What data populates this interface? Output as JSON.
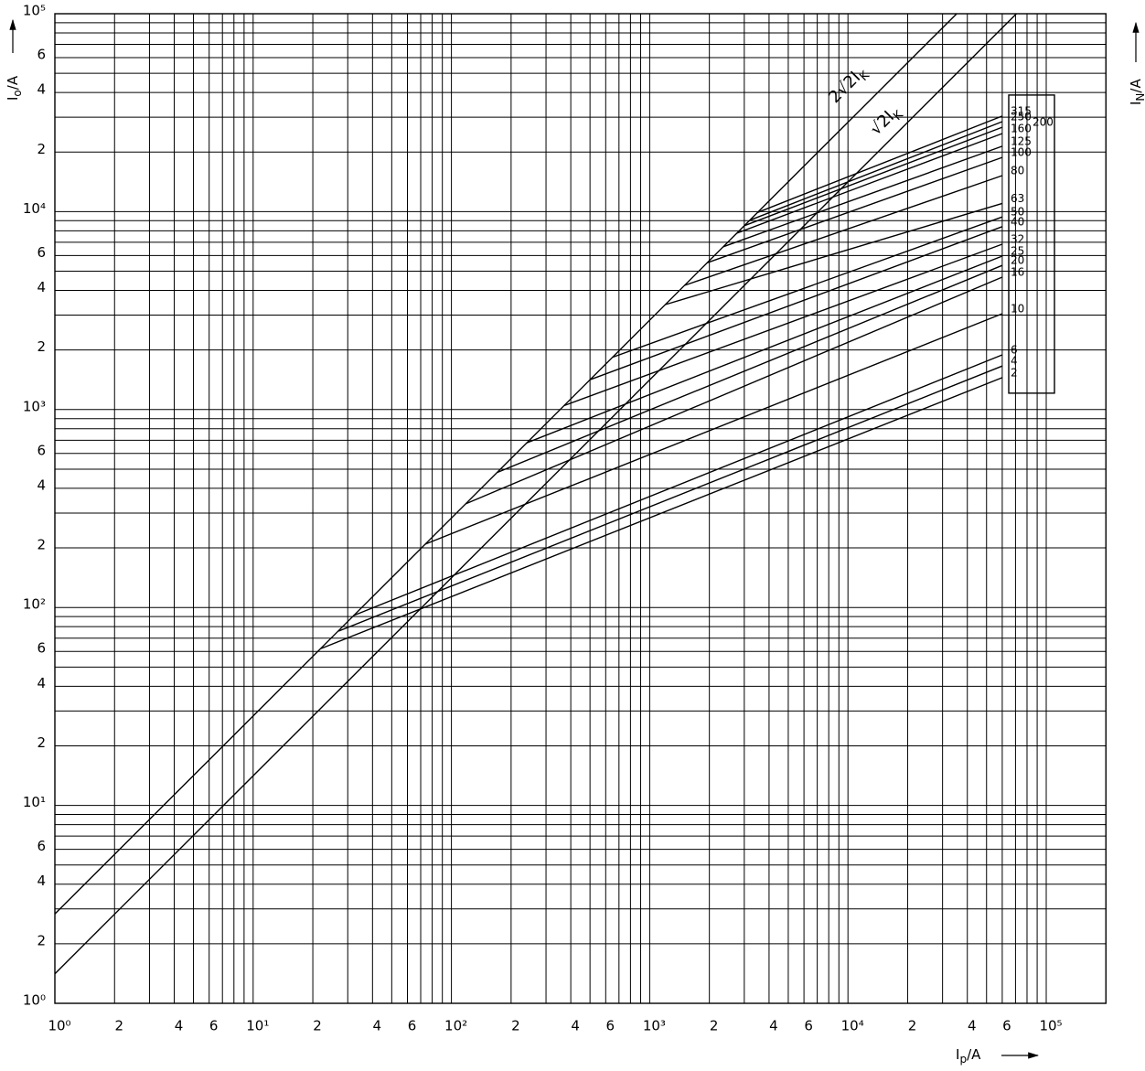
{
  "chart_data": {
    "type": "line",
    "log_x": true,
    "log_y": true,
    "grid": true,
    "color": "#000000",
    "xlim": [
      1,
      200000
    ],
    "ylim": [
      1,
      100000
    ],
    "xticks": [
      {
        "value": 1,
        "label": "10⁰"
      },
      2,
      4,
      6,
      {
        "value": 10,
        "label": "10¹"
      },
      {
        "value": 20,
        "label": "2"
      },
      {
        "value": 40,
        "label": "4"
      },
      {
        "value": 60,
        "label": "6"
      },
      {
        "value": 100,
        "label": "10²"
      },
      {
        "value": 200,
        "label": "2"
      },
      {
        "value": 400,
        "label": "4"
      },
      {
        "value": 600,
        "label": "6"
      },
      {
        "value": 1000,
        "label": "10³"
      },
      {
        "value": 2000,
        "label": "2"
      },
      {
        "value": 4000,
        "label": "4"
      },
      {
        "value": 6000,
        "label": "6"
      },
      {
        "value": 10000,
        "label": "10⁴"
      },
      {
        "value": 20000,
        "label": "2"
      },
      {
        "value": 40000,
        "label": "4"
      },
      {
        "value": 60000,
        "label": "6"
      },
      {
        "value": 100000,
        "label": "10⁵"
      }
    ],
    "yticks": [
      {
        "value": 1,
        "label": "10⁰"
      },
      2,
      4,
      6,
      {
        "value": 10,
        "label": "10¹"
      },
      {
        "value": 20,
        "label": "2"
      },
      {
        "value": 40,
        "label": "4"
      },
      {
        "value": 60,
        "label": "6"
      },
      {
        "value": 100,
        "label": "10²"
      },
      {
        "value": 200,
        "label": "2"
      },
      {
        "value": 400,
        "label": "4"
      },
      {
        "value": 600,
        "label": "6"
      },
      {
        "value": 1000,
        "label": "10³"
      },
      {
        "value": 2000,
        "label": "2"
      },
      {
        "value": 4000,
        "label": "4"
      },
      {
        "value": 6000,
        "label": "6"
      },
      {
        "value": 10000,
        "label": "10⁴"
      },
      {
        "value": 20000,
        "label": "2"
      },
      {
        "value": 40000,
        "label": "4"
      },
      {
        "value": 60000,
        "label": "6"
      },
      {
        "value": 100000,
        "label": "10⁵"
      }
    ],
    "xminor": [
      3,
      5,
      7,
      8,
      9,
      30,
      50,
      70,
      80,
      90,
      300,
      500,
      700,
      800,
      900,
      3000,
      5000,
      7000,
      8000,
      9000,
      30000,
      50000,
      70000,
      80000,
      90000
    ],
    "yminor": [
      3,
      5,
      7,
      8,
      9,
      30,
      50,
      70,
      80,
      90,
      300,
      500,
      700,
      800,
      900,
      3000,
      5000,
      7000,
      8000,
      9000,
      30000,
      50000,
      70000,
      80000,
      90000
    ],
    "x_label": {
      "main": "I",
      "sub": "p",
      "unit": "/A"
    },
    "y_label": {
      "main": "I",
      "sub": "o",
      "unit": "/A"
    },
    "y2_label": {
      "main": "I",
      "sub": "N",
      "unit": "/A"
    },
    "reference_lines": [
      {
        "name": "2√2I",
        "name_sub": "K",
        "x": [
          1,
          35355
        ],
        "values": [
          2.83,
          100000
        ]
      },
      {
        "name": "√2I",
        "name_sub": "K",
        "x": [
          1,
          70711
        ],
        "values": [
          1.41,
          100000
        ]
      }
    ],
    "series": [
      {
        "name": "315",
        "x": [
          3500,
          60000
        ],
        "values": [
          9900,
          30400
        ]
      },
      {
        "name": "250",
        "x": [
          3200,
          60000
        ],
        "values": [
          9050,
          28500
        ]
      },
      {
        "name": "200",
        "x": [
          3000,
          60000
        ],
        "values": [
          8485,
          26700
        ]
      },
      {
        "name": "160",
        "x": [
          2750,
          60000
        ],
        "values": [
          7778,
          24800
        ]
      },
      {
        "name": "125",
        "x": [
          2350,
          60000
        ],
        "values": [
          6646,
          21400
        ]
      },
      {
        "name": "100",
        "x": [
          1950,
          60000
        ],
        "values": [
          5515,
          18800
        ]
      },
      {
        "name": "80",
        "x": [
          1500,
          60000
        ],
        "values": [
          4243,
          15200
        ]
      },
      {
        "name": "63",
        "x": [
          1200,
          60000
        ],
        "values": [
          3394,
          11000
        ]
      },
      {
        "name": "50",
        "x": [
          650,
          60000
        ],
        "values": [
          1838,
          9400
        ]
      },
      {
        "name": "40",
        "x": [
          500,
          60000
        ],
        "values": [
          1414,
          8400
        ]
      },
      {
        "name": "32",
        "x": [
          370,
          60000
        ],
        "values": [
          1047,
          6850
        ]
      },
      {
        "name": "25",
        "x": [
          240,
          60000
        ],
        "values": [
          679,
          5960
        ]
      },
      {
        "name": "20",
        "x": [
          170,
          60000
        ],
        "values": [
          481,
          5350
        ]
      },
      {
        "name": "16",
        "x": [
          118,
          60000
        ],
        "values": [
          334,
          4670
        ]
      },
      {
        "name": "10",
        "x": [
          74,
          60000
        ],
        "values": [
          209,
          3050
        ]
      },
      {
        "name": "6",
        "x": [
          32,
          60000
        ],
        "values": [
          91,
          1890
        ]
      },
      {
        "name": "4",
        "x": [
          27,
          60000
        ],
        "values": [
          76,
          1660
        ]
      },
      {
        "name": "2",
        "x": [
          22,
          60000
        ],
        "values": [
          62,
          1450
        ]
      }
    ]
  }
}
